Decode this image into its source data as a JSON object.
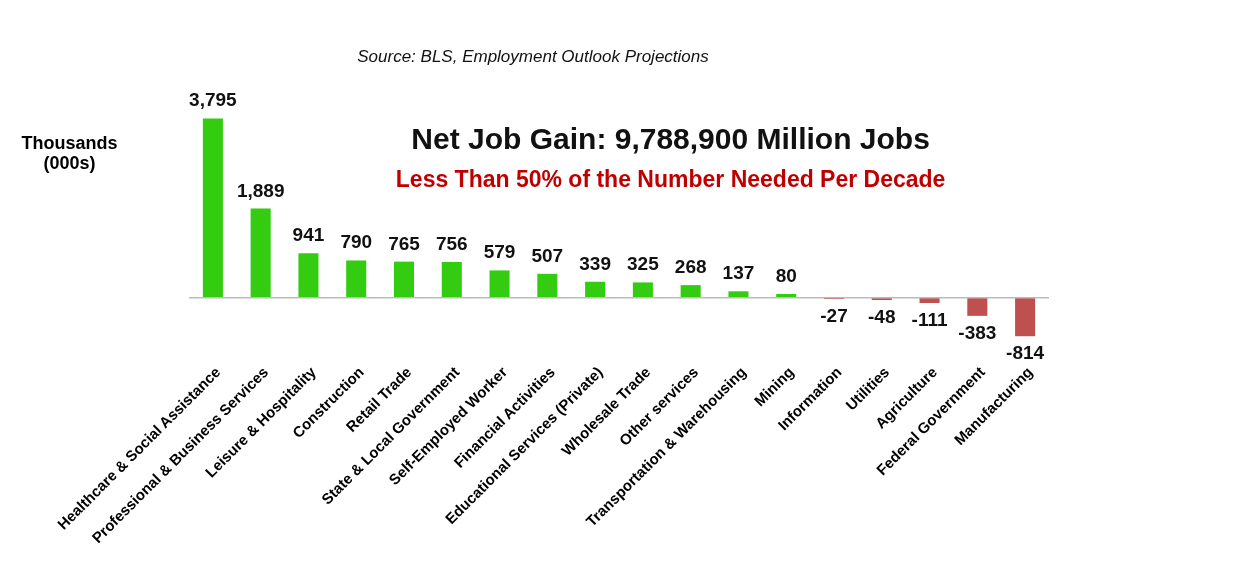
{
  "chart_data": {
    "type": "bar",
    "title": "Net Job Gain: 9,788,900 Million Jobs",
    "subtitle": "Less Than 50% of the Number Needed Per Decade",
    "ylabel": "Thousands (000s)",
    "annotations": [
      "Source:  BLS, Employment  Outlook Projections"
    ],
    "categories": [
      "Healthcare & Social Assistance",
      "Professional & Business Services",
      "Leisure & Hospitality",
      "Construction",
      "Retail Trade",
      "State & Local Government",
      "Self-Employed Worker",
      "Financial Activities",
      "Educational Services (Private)",
      "Wholesale Trade",
      "Other services",
      "Transportation & Warehousing",
      "Mining",
      "Information",
      "Utilities",
      "Agriculture",
      "Federal Government",
      "Manufacturing"
    ],
    "values": [
      3795,
      1889,
      941,
      790,
      765,
      756,
      579,
      507,
      339,
      325,
      268,
      137,
      80,
      -27,
      -48,
      -111,
      -383,
      -814
    ],
    "value_labels": [
      "3,795",
      "1,889",
      "941",
      "790",
      "765",
      "756",
      "579",
      "507",
      "339",
      "325",
      "268",
      "137",
      "80",
      "-27",
      "-48",
      "-111",
      "-383",
      "-814"
    ],
    "colors": [
      "#33cc11",
      "#33cc11",
      "#33cc11",
      "#33cc11",
      "#33cc11",
      "#33cc11",
      "#33cc11",
      "#33cc11",
      "#33cc11",
      "#33cc11",
      "#33cc11",
      "#33cc11",
      "#33cc11",
      "#c0504d",
      "#c0504d",
      "#c0504d",
      "#c0504d",
      "#c0504d"
    ],
    "grid": false
  }
}
